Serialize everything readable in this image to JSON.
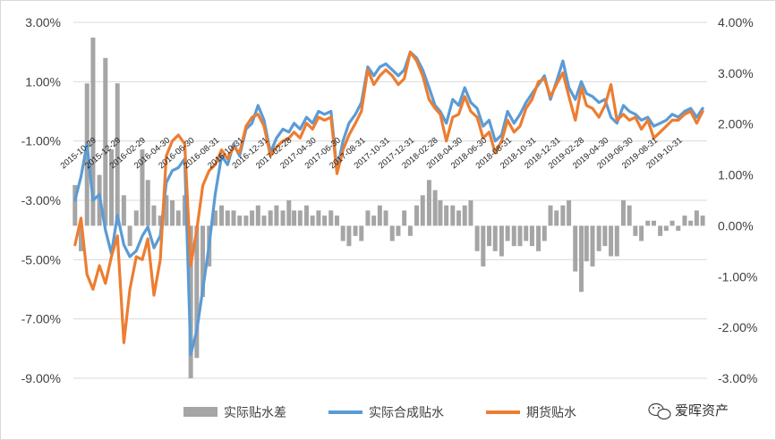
{
  "chart_data": {
    "type": "line",
    "title": "",
    "xlabel": "",
    "ylabel": "",
    "left_axis": {
      "ylim": [
        -9,
        3
      ],
      "ticks": [
        3,
        1,
        -1,
        -3,
        -5,
        -7,
        -9
      ],
      "tick_labels": [
        "3.00%",
        "1.00%",
        "-1.00%",
        "-3.00%",
        "-5.00%",
        "-7.00%",
        "-9.00%"
      ]
    },
    "right_axis": {
      "ylim": [
        -3,
        4
      ],
      "ticks": [
        4,
        3,
        2,
        1,
        0,
        -1,
        -2,
        -3
      ],
      "tick_labels": [
        "4.00%",
        "3.00%",
        "2.00%",
        "1.00%",
        "0.00%",
        "-1.00%",
        "-2.00%",
        "-3.00%"
      ]
    },
    "x_range": [
      "2015-09-01",
      "2019-12-31"
    ],
    "x_tick_labels": [
      "2015-10-29",
      "2015-12-29",
      "2016-02-29",
      "2016-04-30",
      "2016-06-30",
      "2016-08-31",
      "2016-10-31",
      "2016-12-31",
      "2017-02-28",
      "2017-04-30",
      "2017-06-30",
      "2017-08-31",
      "2017-10-31",
      "2017-12-31",
      "2018-02-28",
      "2018-04-30",
      "2018-06-30",
      "2018-08-31",
      "2018-10-31",
      "2018-12-31",
      "2019-02-28",
      "2019-04-30",
      "2019-06-30",
      "2019-08-31",
      "2019-10-31"
    ],
    "legend_position": "bottom",
    "grid": true,
    "series": [
      {
        "name": "实际贴水差",
        "type": "bar",
        "axis": "right",
        "color": "#A5A5A5",
        "x": [
          "2015-09-05",
          "2015-09-20",
          "2015-10-05",
          "2015-10-20",
          "2015-11-05",
          "2015-11-20",
          "2015-12-05",
          "2015-12-20",
          "2016-01-05",
          "2016-01-20",
          "2016-02-05",
          "2016-02-20",
          "2016-03-05",
          "2016-03-20",
          "2016-04-05",
          "2016-04-20",
          "2016-05-05",
          "2016-05-20",
          "2016-06-05",
          "2016-06-20",
          "2016-07-05",
          "2016-07-20",
          "2016-08-05",
          "2016-08-20",
          "2016-09-05",
          "2016-09-20",
          "2016-10-05",
          "2016-10-20",
          "2016-11-05",
          "2016-11-20",
          "2016-12-05",
          "2016-12-20",
          "2017-01-05",
          "2017-01-20",
          "2017-02-05",
          "2017-02-20",
          "2017-03-05",
          "2017-03-20",
          "2017-04-05",
          "2017-04-20",
          "2017-05-05",
          "2017-05-20",
          "2017-06-05",
          "2017-06-20",
          "2017-07-05",
          "2017-07-20",
          "2017-08-05",
          "2017-08-20",
          "2017-09-05",
          "2017-09-20",
          "2017-10-05",
          "2017-10-20",
          "2017-11-05",
          "2017-11-20",
          "2017-12-05",
          "2017-12-20",
          "2018-01-05",
          "2018-01-20",
          "2018-02-05",
          "2018-02-20",
          "2018-03-05",
          "2018-03-20",
          "2018-04-05",
          "2018-04-20",
          "2018-05-05",
          "2018-05-20",
          "2018-06-05",
          "2018-06-20",
          "2018-07-05",
          "2018-07-20",
          "2018-08-05",
          "2018-08-20",
          "2018-09-05",
          "2018-09-20",
          "2018-10-05",
          "2018-10-20",
          "2018-11-05",
          "2018-11-20",
          "2018-12-05",
          "2018-12-20",
          "2019-01-05",
          "2019-01-20",
          "2019-02-05",
          "2019-02-20",
          "2019-03-05",
          "2019-03-20",
          "2019-04-05",
          "2019-04-20",
          "2019-05-05",
          "2019-05-20",
          "2019-06-05",
          "2019-06-20",
          "2019-07-05",
          "2019-07-20",
          "2019-08-05",
          "2019-08-20",
          "2019-09-05",
          "2019-09-20",
          "2019-10-05",
          "2019-10-20",
          "2019-11-05",
          "2019-11-20",
          "2019-12-05",
          "2019-12-20"
        ],
        "values": [
          0.8,
          -0.5,
          2.8,
          3.7,
          1.0,
          3.3,
          1.5,
          2.8,
          0.6,
          -0.4,
          0.3,
          1.5,
          0.9,
          0.4,
          0.2,
          0.6,
          0.5,
          0.3,
          0.6,
          -3.0,
          -2.6,
          -1.4,
          -0.8,
          0.3,
          0.4,
          0.3,
          0.3,
          0.2,
          0.2,
          0.3,
          0.4,
          0.2,
          0.3,
          0.4,
          0.3,
          0.5,
          0.3,
          0.3,
          0.4,
          0.2,
          0.3,
          0.2,
          0.3,
          0.2,
          -0.3,
          -0.4,
          -0.2,
          -0.3,
          0.3,
          0.2,
          0.4,
          0.3,
          -0.3,
          -0.2,
          0.3,
          -0.2,
          0.4,
          0.6,
          0.9,
          0.7,
          0.5,
          0.4,
          0.4,
          0.3,
          0.4,
          0.5,
          -0.5,
          -0.8,
          -0.4,
          -0.5,
          -0.6,
          -0.3,
          -0.4,
          -0.4,
          -0.3,
          -0.4,
          -0.5,
          -0.3,
          0.4,
          0.3,
          0.4,
          0.5,
          -0.9,
          -1.3,
          -0.7,
          -0.8,
          -0.5,
          -0.4,
          -0.6,
          -0.6,
          0.5,
          0.4,
          -0.2,
          -0.3,
          0.1,
          0.1,
          -0.2,
          -0.1,
          0.1,
          -0.1,
          0.2,
          0.1,
          0.3,
          0.2
        ]
      },
      {
        "name": "实际合成贴水",
        "type": "line",
        "axis": "left",
        "color": "#5B9BD5",
        "x": [
          "2015-09-05",
          "2015-09-20",
          "2015-10-05",
          "2015-10-20",
          "2015-11-05",
          "2015-11-20",
          "2015-12-05",
          "2015-12-20",
          "2016-01-05",
          "2016-01-20",
          "2016-02-05",
          "2016-02-20",
          "2016-03-05",
          "2016-03-20",
          "2016-04-05",
          "2016-04-20",
          "2016-05-05",
          "2016-05-20",
          "2016-06-05",
          "2016-06-20",
          "2016-07-05",
          "2016-07-20",
          "2016-08-05",
          "2016-08-20",
          "2016-09-05",
          "2016-09-20",
          "2016-10-05",
          "2016-10-20",
          "2016-11-05",
          "2016-11-20",
          "2016-12-05",
          "2016-12-20",
          "2017-01-05",
          "2017-01-20",
          "2017-02-05",
          "2017-02-20",
          "2017-03-05",
          "2017-03-20",
          "2017-04-05",
          "2017-04-20",
          "2017-05-05",
          "2017-05-20",
          "2017-06-05",
          "2017-06-20",
          "2017-07-05",
          "2017-07-20",
          "2017-08-05",
          "2017-08-20",
          "2017-09-05",
          "2017-09-20",
          "2017-10-05",
          "2017-10-20",
          "2017-11-05",
          "2017-11-20",
          "2017-12-05",
          "2017-12-20",
          "2018-01-05",
          "2018-01-20",
          "2018-02-05",
          "2018-02-20",
          "2018-03-05",
          "2018-03-20",
          "2018-04-05",
          "2018-04-20",
          "2018-05-05",
          "2018-05-20",
          "2018-06-05",
          "2018-06-20",
          "2018-07-05",
          "2018-07-20",
          "2018-08-05",
          "2018-08-20",
          "2018-09-05",
          "2018-09-20",
          "2018-10-05",
          "2018-10-20",
          "2018-11-05",
          "2018-11-20",
          "2018-12-05",
          "2018-12-20",
          "2019-01-05",
          "2019-01-20",
          "2019-02-05",
          "2019-02-20",
          "2019-03-05",
          "2019-03-20",
          "2019-04-05",
          "2019-04-20",
          "2019-05-05",
          "2019-05-20",
          "2019-06-05",
          "2019-06-20",
          "2019-07-05",
          "2019-07-20",
          "2019-08-05",
          "2019-08-20",
          "2019-09-05",
          "2019-09-20",
          "2019-10-05",
          "2019-10-20",
          "2019-11-05",
          "2019-11-20",
          "2019-12-05",
          "2019-12-20"
        ],
        "values": [
          -3.0,
          -2.2,
          -1.1,
          -3.0,
          -2.8,
          -4.0,
          -4.8,
          -3.5,
          -4.5,
          -4.9,
          -4.7,
          -4.2,
          -3.9,
          -4.6,
          -4.2,
          -2.4,
          -2.0,
          -1.9,
          -1.6,
          -8.2,
          -7.4,
          -6.0,
          -4.5,
          -2.8,
          -1.5,
          -1.8,
          -1.1,
          -1.5,
          -0.6,
          -0.4,
          0.2,
          -0.3,
          -1.4,
          -0.9,
          -0.6,
          -0.7,
          -0.4,
          -0.6,
          -0.2,
          -0.4,
          0.0,
          -0.1,
          0.0,
          -2.0,
          -1.0,
          -0.4,
          -0.1,
          0.3,
          1.5,
          1.2,
          1.5,
          1.6,
          1.4,
          1.2,
          1.4,
          2.0,
          1.8,
          1.4,
          0.8,
          0.2,
          0.0,
          -0.4,
          0.4,
          0.2,
          0.8,
          0.3,
          0.1,
          -0.5,
          -0.3,
          -1.0,
          -0.8,
          0.0,
          -0.4,
          -0.1,
          0.3,
          0.6,
          0.9,
          1.2,
          0.4,
          1.0,
          1.7,
          0.8,
          0.4,
          1.0,
          0.6,
          0.5,
          0.3,
          0.4,
          -0.2,
          -0.4,
          0.2,
          0.0,
          -0.1,
          -0.3,
          -0.2,
          -0.5,
          -0.4,
          -0.3,
          -0.1,
          -0.2,
          0.0,
          0.1,
          -0.2,
          0.1
        ]
      },
      {
        "name": "期货贴水",
        "type": "line",
        "axis": "left",
        "color": "#ED7D31",
        "x": [
          "2015-09-05",
          "2015-09-20",
          "2015-10-05",
          "2015-10-20",
          "2015-11-05",
          "2015-11-20",
          "2015-12-05",
          "2015-12-20",
          "2016-01-05",
          "2016-01-20",
          "2016-02-05",
          "2016-02-20",
          "2016-03-05",
          "2016-03-20",
          "2016-04-05",
          "2016-04-20",
          "2016-05-05",
          "2016-05-20",
          "2016-06-05",
          "2016-06-20",
          "2016-07-05",
          "2016-07-20",
          "2016-08-05",
          "2016-08-20",
          "2016-09-05",
          "2016-09-20",
          "2016-10-05",
          "2016-10-20",
          "2016-11-05",
          "2016-11-20",
          "2016-12-05",
          "2016-12-20",
          "2017-01-05",
          "2017-01-20",
          "2017-02-05",
          "2017-02-20",
          "2017-03-05",
          "2017-03-20",
          "2017-04-05",
          "2017-04-20",
          "2017-05-05",
          "2017-05-20",
          "2017-06-05",
          "2017-06-20",
          "2017-07-05",
          "2017-07-20",
          "2017-08-05",
          "2017-08-20",
          "2017-09-05",
          "2017-09-20",
          "2017-10-05",
          "2017-10-20",
          "2017-11-05",
          "2017-11-20",
          "2017-12-05",
          "2017-12-20",
          "2018-01-05",
          "2018-01-20",
          "2018-02-05",
          "2018-02-20",
          "2018-03-05",
          "2018-03-20",
          "2018-04-05",
          "2018-04-20",
          "2018-05-05",
          "2018-05-20",
          "2018-06-05",
          "2018-06-20",
          "2018-07-05",
          "2018-07-20",
          "2018-08-05",
          "2018-08-20",
          "2018-09-05",
          "2018-09-20",
          "2018-10-05",
          "2018-10-20",
          "2018-11-05",
          "2018-11-20",
          "2018-12-05",
          "2018-12-20",
          "2019-01-05",
          "2019-01-20",
          "2019-02-05",
          "2019-02-20",
          "2019-03-05",
          "2019-03-20",
          "2019-04-05",
          "2019-04-20",
          "2019-05-05",
          "2019-05-20",
          "2019-06-05",
          "2019-06-20",
          "2019-07-05",
          "2019-07-20",
          "2019-08-05",
          "2019-08-20",
          "2019-09-05",
          "2019-09-20",
          "2019-10-05",
          "2019-10-20",
          "2019-11-05",
          "2019-11-20",
          "2019-12-05",
          "2019-12-20"
        ],
        "values": [
          -4.5,
          -3.6,
          -5.5,
          -6.0,
          -5.2,
          -5.8,
          -4.9,
          -4.2,
          -7.8,
          -6.0,
          -4.9,
          -5.0,
          -4.3,
          -6.2,
          -5.0,
          -1.5,
          -1.0,
          -0.8,
          -1.1,
          -5.2,
          -4.0,
          -2.5,
          -2.0,
          -1.8,
          -1.3,
          -1.6,
          -1.2,
          -1.4,
          -0.5,
          -0.2,
          -0.1,
          -0.5,
          -1.5,
          -1.2,
          -1.0,
          -0.9,
          -0.7,
          -0.9,
          -0.4,
          -0.6,
          -0.2,
          -0.3,
          -0.2,
          -2.1,
          -1.3,
          -0.8,
          -0.4,
          0.0,
          1.4,
          0.9,
          1.2,
          1.4,
          1.2,
          0.9,
          1.1,
          2.0,
          1.7,
          1.2,
          0.4,
          0.1,
          -0.1,
          -1.0,
          -0.2,
          -0.1,
          0.5,
          0.0,
          -0.2,
          -0.9,
          -0.7,
          -1.4,
          -1.0,
          -0.3,
          -0.7,
          -0.5,
          0.1,
          0.4,
          1.0,
          1.1,
          0.5,
          0.9,
          1.3,
          0.5,
          -0.3,
          0.8,
          0.2,
          0.1,
          -0.2,
          0.2,
          0.9,
          -0.3,
          -0.1,
          -0.3,
          -0.2,
          -0.6,
          -0.3,
          -0.9,
          -0.7,
          -0.5,
          -0.3,
          -0.3,
          -0.1,
          0.0,
          -0.4,
          0.0
        ]
      }
    ],
    "watermark": "爱晖资产"
  }
}
